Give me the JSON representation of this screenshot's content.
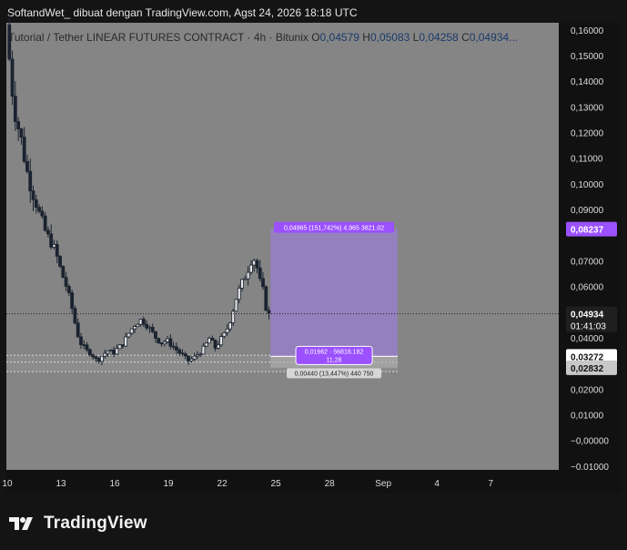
{
  "header": {
    "caption": "SoftandWet_ dibuat dengan TradingView.com, Agst 24, 2026 18:18 UTC"
  },
  "footer": {
    "brand": "TradingView"
  },
  "colors": {
    "pane_bg": "#858585",
    "axis_bg": "#111111",
    "candle": "#1b2330",
    "range_fill": "#9b7fd1",
    "label_purple": "#9b51ff",
    "current_price_label": "#1f1f1f"
  },
  "chart_data": {
    "type": "candlestick",
    "legend": {
      "symbol": "Tutorial / Tether LINEAR FUTURES CONTRACT · 4h · Bitunix",
      "o_label": "O",
      "o_value": "0,04579",
      "h_label": "H",
      "h_value": "0,05083",
      "l_label": "L",
      "l_value": "0,04258",
      "c_label": "C",
      "c_value": "0,04934..."
    },
    "ylim": [
      -0.0115,
      0.1628
    ],
    "y_ticks": [
      {
        "value": 0.16,
        "label": "0,16000"
      },
      {
        "value": 0.15,
        "label": "0,15000"
      },
      {
        "value": 0.14,
        "label": "0,14000"
      },
      {
        "value": 0.13,
        "label": "0,13000"
      },
      {
        "value": 0.12,
        "label": "0,12000"
      },
      {
        "value": 0.11,
        "label": "0,11000"
      },
      {
        "value": 0.1,
        "label": "0,10000"
      },
      {
        "value": 0.09,
        "label": "0,09000"
      },
      {
        "value": 0.07,
        "label": "0,07000"
      },
      {
        "value": 0.06,
        "label": "0,06000"
      },
      {
        "value": 0.04,
        "label": "0,04000"
      },
      {
        "value": 0.02,
        "label": "0,02000"
      },
      {
        "value": 0.01,
        "label": "0,01000"
      },
      {
        "value": 0.0,
        "label": "−0,00000"
      },
      {
        "value": -0.01,
        "label": "−0,01000"
      }
    ],
    "x_ticks": [
      {
        "day": 10,
        "label": "10"
      },
      {
        "day": 13,
        "label": "13"
      },
      {
        "day": 16,
        "label": "16"
      },
      {
        "day": 19,
        "label": "19"
      },
      {
        "day": 22,
        "label": "22"
      },
      {
        "day": 25,
        "label": "25"
      },
      {
        "day": 28,
        "label": "28"
      },
      {
        "day": 31,
        "label": "Sep"
      },
      {
        "day": 34,
        "label": "4"
      },
      {
        "day": 37,
        "label": "7"
      }
    ],
    "xlim": [
      9.95,
      40.8
    ],
    "price_series_close": [
      [
        9.95,
        0.162
      ],
      [
        10.1,
        0.15
      ],
      [
        10.3,
        0.135
      ],
      [
        10.5,
        0.125
      ],
      [
        10.7,
        0.12
      ],
      [
        10.9,
        0.113
      ],
      [
        11.0,
        0.108
      ],
      [
        11.2,
        0.102
      ],
      [
        11.4,
        0.097
      ],
      [
        11.6,
        0.093
      ],
      [
        11.8,
        0.088
      ],
      [
        12.0,
        0.084
      ],
      [
        12.2,
        0.08
      ],
      [
        12.4,
        0.078
      ],
      [
        12.6,
        0.075
      ],
      [
        12.8,
        0.071
      ],
      [
        13.0,
        0.066
      ],
      [
        13.3,
        0.06
      ],
      [
        13.6,
        0.052
      ],
      [
        13.9,
        0.042
      ],
      [
        14.1,
        0.038
      ],
      [
        14.4,
        0.035
      ],
      [
        14.7,
        0.034
      ],
      [
        15.0,
        0.031
      ],
      [
        15.3,
        0.033
      ],
      [
        15.6,
        0.035
      ],
      [
        15.9,
        0.034
      ],
      [
        16.2,
        0.036
      ],
      [
        16.5,
        0.038
      ],
      [
        16.8,
        0.042
      ],
      [
        17.1,
        0.045
      ],
      [
        17.4,
        0.047
      ],
      [
        17.7,
        0.046
      ],
      [
        18.0,
        0.043
      ],
      [
        18.3,
        0.04
      ],
      [
        18.6,
        0.038
      ],
      [
        18.9,
        0.039
      ],
      [
        19.2,
        0.037
      ],
      [
        19.5,
        0.035
      ],
      [
        19.8,
        0.033
      ],
      [
        20.1,
        0.031
      ],
      [
        20.4,
        0.032
      ],
      [
        20.7,
        0.034
      ],
      [
        21.0,
        0.036
      ],
      [
        21.3,
        0.04
      ],
      [
        21.6,
        0.036
      ],
      [
        21.9,
        0.039
      ],
      [
        22.2,
        0.042
      ],
      [
        22.5,
        0.048
      ],
      [
        22.8,
        0.056
      ],
      [
        23.1,
        0.061
      ],
      [
        23.4,
        0.066
      ],
      [
        23.7,
        0.072
      ],
      [
        23.9,
        0.069
      ],
      [
        24.1,
        0.062
      ],
      [
        24.3,
        0.058
      ],
      [
        24.5,
        0.05
      ],
      [
        24.65,
        0.0486
      ],
      [
        24.75,
        0.04934
      ]
    ],
    "current_price": 0.04934,
    "current_price_label": "0,04934",
    "countdown_label": "01:41:03",
    "long_position": {
      "entry": 0.03272,
      "entry_label": "0,03272",
      "target": 0.08237,
      "target_label": "0,08237",
      "stop": 0.02832,
      "stop_label": "0,02832",
      "start_day": 24.7,
      "end_day": 31.8,
      "profit_text": "0,04965 (151,742%) 4.965 3821.02",
      "entry_text_1": "0,01662 · 56818.182",
      "entry_text_2": "11,28",
      "stop_text": "0,00440 (13,447%) 440 750"
    },
    "support_zone": {
      "low": 0.0268,
      "high": 0.0332,
      "mid": 0.0305
    }
  }
}
